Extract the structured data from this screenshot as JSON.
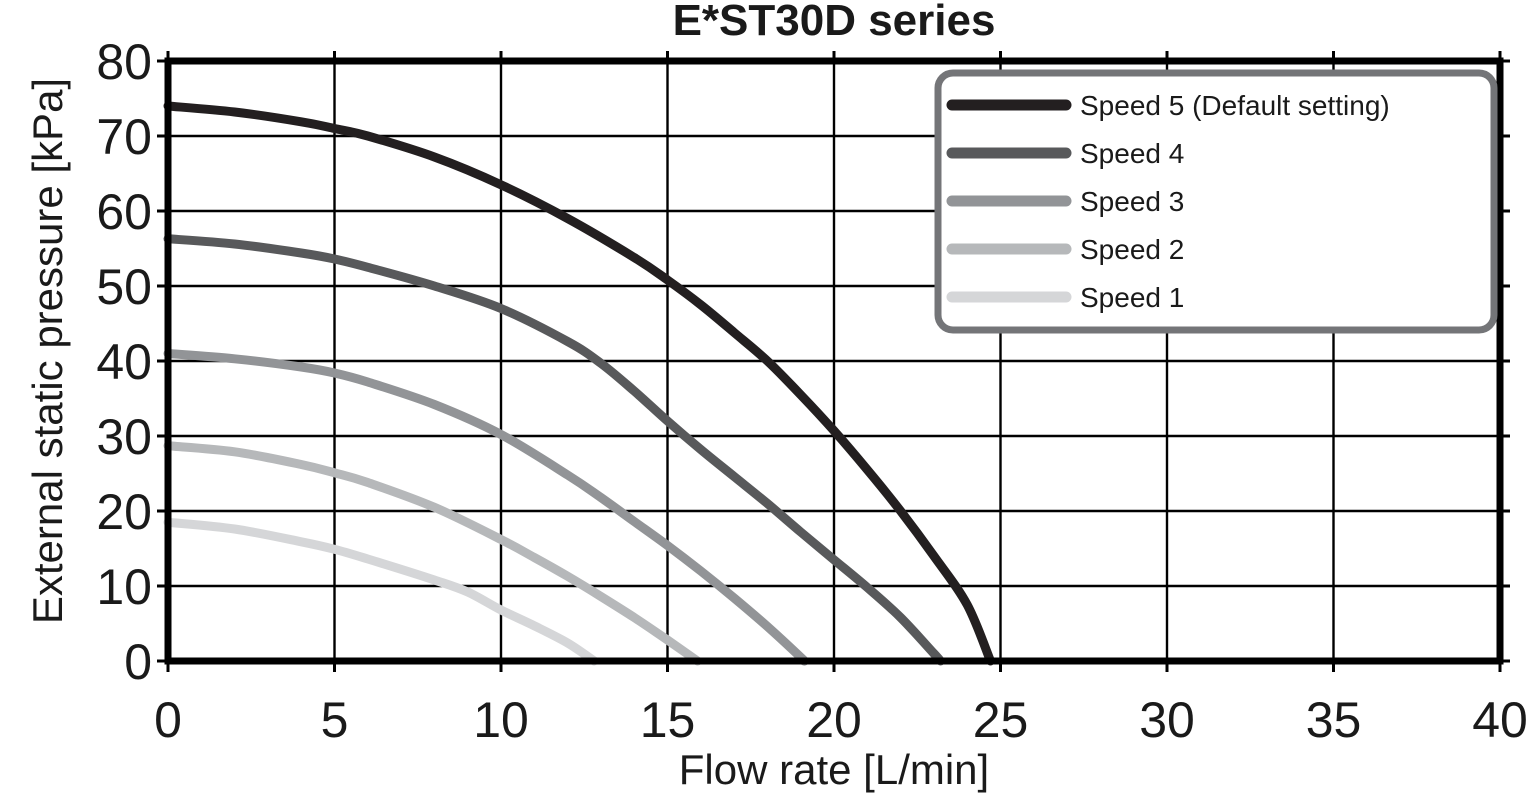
{
  "title": "E*ST30D series",
  "chart_data": {
    "type": "line",
    "title": "E*ST30D series",
    "xlabel": "Flow rate [L/min]",
    "ylabel": "External static pressure [kPa]",
    "xlim": [
      0,
      40
    ],
    "ylim": [
      0,
      80
    ],
    "xticks": [
      0,
      5,
      10,
      15,
      20,
      25,
      30,
      35,
      40
    ],
    "yticks": [
      0,
      10,
      20,
      30,
      40,
      50,
      60,
      70,
      80
    ],
    "grid": true,
    "legend_position": "top-right",
    "axis_color": "#000000",
    "text_color": "#1a1a1a",
    "legend_border_color": "#747578",
    "series": [
      {
        "name": "Speed 5 (Default setting)",
        "color": "#231f20",
        "points": [
          [
            0,
            74
          ],
          [
            2,
            73.2
          ],
          [
            4,
            71.9
          ],
          [
            5,
            71
          ],
          [
            6,
            70
          ],
          [
            8,
            67.2
          ],
          [
            10,
            63.5
          ],
          [
            12,
            59
          ],
          [
            14,
            53.8
          ],
          [
            15,
            50.8
          ],
          [
            16,
            47.5
          ],
          [
            17,
            43.8
          ],
          [
            18,
            40
          ],
          [
            19,
            35.5
          ],
          [
            20,
            30.7
          ],
          [
            21,
            25.5
          ],
          [
            22,
            20
          ],
          [
            23,
            14
          ],
          [
            24,
            7.5
          ],
          [
            24.7,
            0
          ]
        ]
      },
      {
        "name": "Speed 4",
        "color": "#58595b",
        "points": [
          [
            0,
            56.3
          ],
          [
            2,
            55.6
          ],
          [
            4,
            54.4
          ],
          [
            5,
            53.6
          ],
          [
            6,
            52.5
          ],
          [
            8,
            50
          ],
          [
            10,
            47
          ],
          [
            12,
            42.6
          ],
          [
            13,
            39.7
          ],
          [
            14,
            36
          ],
          [
            15,
            32
          ],
          [
            16,
            28.2
          ],
          [
            17,
            24.6
          ],
          [
            18,
            21
          ],
          [
            19,
            17.2
          ],
          [
            20,
            13.5
          ],
          [
            21,
            9.8
          ],
          [
            22,
            5.8
          ],
          [
            23,
            1
          ],
          [
            23.2,
            0
          ]
        ]
      },
      {
        "name": "Speed 3",
        "color": "#929497",
        "points": [
          [
            0,
            41
          ],
          [
            2,
            40.3
          ],
          [
            4,
            39.2
          ],
          [
            5,
            38.4
          ],
          [
            6,
            37.2
          ],
          [
            8,
            34.2
          ],
          [
            10,
            30.2
          ],
          [
            12,
            24.8
          ],
          [
            13,
            21.8
          ],
          [
            14,
            18.6
          ],
          [
            15,
            15.4
          ],
          [
            16,
            12
          ],
          [
            17,
            8.4
          ],
          [
            18,
            4.6
          ],
          [
            19,
            0.5
          ],
          [
            19.1,
            0
          ]
        ]
      },
      {
        "name": "Speed 2",
        "color": "#b6b8ba",
        "points": [
          [
            0,
            28.7
          ],
          [
            2,
            27.9
          ],
          [
            4,
            26.2
          ],
          [
            5,
            25.1
          ],
          [
            6,
            23.8
          ],
          [
            8,
            20.5
          ],
          [
            10,
            16.2
          ],
          [
            11,
            13.8
          ],
          [
            12,
            11.3
          ],
          [
            13,
            8.6
          ],
          [
            14,
            5.8
          ],
          [
            15,
            2.8
          ],
          [
            15.9,
            0
          ]
        ]
      },
      {
        "name": "Speed 1",
        "color": "#d5d6d8",
        "points": [
          [
            0,
            18.5
          ],
          [
            2,
            17.6
          ],
          [
            4,
            15.9
          ],
          [
            5,
            14.9
          ],
          [
            6,
            13.6
          ],
          [
            8,
            10.8
          ],
          [
            9,
            9.2
          ],
          [
            10,
            6.8
          ],
          [
            11,
            4.7
          ],
          [
            12,
            2.4
          ],
          [
            12.8,
            0
          ]
        ]
      }
    ]
  }
}
